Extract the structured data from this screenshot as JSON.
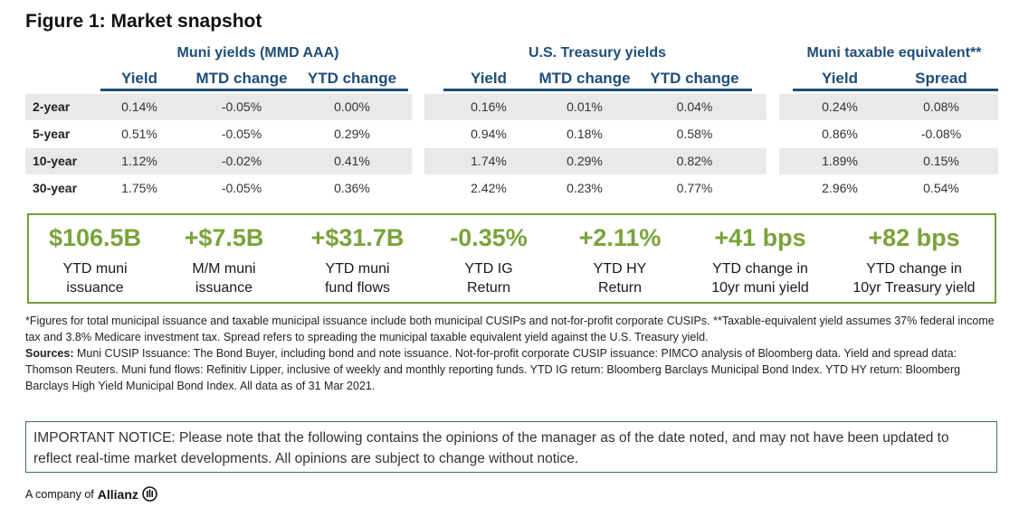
{
  "title": "Figure 1: Market snapshot",
  "groups": {
    "muni": {
      "title": "Muni yields (MMD AAA)",
      "cols": [
        "Yield",
        "MTD change",
        "YTD change"
      ]
    },
    "treasury": {
      "title": "U.S. Treasury yields",
      "cols": [
        "Yield",
        "MTD change",
        "YTD change"
      ]
    },
    "taxable": {
      "title": "Muni taxable equivalent**",
      "cols": [
        "Yield",
        "Spread"
      ]
    }
  },
  "rows": [
    {
      "label": "2-year",
      "muni": [
        "0.14%",
        "-0.05%",
        "0.00%"
      ],
      "treasury": [
        "0.16%",
        "0.01%",
        "0.04%"
      ],
      "taxable": [
        "0.24%",
        "0.08%"
      ]
    },
    {
      "label": "5-year",
      "muni": [
        "0.51%",
        "-0.05%",
        "0.29%"
      ],
      "treasury": [
        "0.94%",
        "0.18%",
        "0.58%"
      ],
      "taxable": [
        "0.86%",
        "-0.08%"
      ]
    },
    {
      "label": "10-year",
      "muni": [
        "1.12%",
        "-0.02%",
        "0.41%"
      ],
      "treasury": [
        "1.74%",
        "0.29%",
        "0.82%"
      ],
      "taxable": [
        "1.89%",
        "0.15%"
      ]
    },
    {
      "label": "30-year",
      "muni": [
        "1.75%",
        "-0.05%",
        "0.36%"
      ],
      "treasury": [
        "2.42%",
        "0.23%",
        "0.77%"
      ],
      "taxable": [
        "2.96%",
        "0.54%"
      ]
    }
  ],
  "kpis": [
    {
      "value": "$106.5B",
      "line1": "YTD muni",
      "line2": "issuance"
    },
    {
      "value": "+$7.5B",
      "line1": "M/M muni",
      "line2": "issuance"
    },
    {
      "value": "+$31.7B",
      "line1": "YTD muni",
      "line2": "fund flows"
    },
    {
      "value": "-0.35%",
      "line1": "YTD IG",
      "line2": "Return"
    },
    {
      "value": "+2.11%",
      "line1": "YTD HY",
      "line2": "Return"
    },
    {
      "value": "+41 bps",
      "line1": "YTD change in",
      "line2": "10yr muni yield"
    },
    {
      "value": "+82 bps",
      "line1": "YTD change in",
      "line2": "10yr Treasury yield"
    }
  ],
  "footnotes": {
    "note": "*Figures for total municipal issuance and taxable municipal issuance include both municipal CUSIPs and not-for-profit corporate CUSIPs. **Taxable-equivalent yield assumes 37% federal income tax and 3.8% Medicare investment tax. Spread refers to spreading the municipal taxable equivalent yield against the U.S. Treasury yield.",
    "sources_label": "Sources:",
    "sources": "Muni CUSIP Issuance: The Bond Buyer, including bond and note issuance. Not-for-profit corporate CUSIP issuance: PIMCO analysis of Bloomberg data. Yield and spread data: Thomson Reuters. Muni fund flows: Refinitiv Lipper, inclusive of weekly and monthly reporting funds. YTD IG return: Bloomberg Barclays Municipal Bond Index. YTD HY return: Bloomberg Barclays High Yield Municipal Bond Index. All data as of 31 Mar 2021."
  },
  "notice": "IMPORTANT NOTICE: Please note that the following contains the opinions of the manager as of the date noted, and may not have been updated to reflect real-time market developments. All opinions are subject to change without notice.",
  "footer": {
    "prefix": "A company of",
    "brand": "Allianz"
  },
  "colors": {
    "header_blue": "#1f4e79",
    "kpi_green": "#7aa33a",
    "kpi_border": "#7a9a3b",
    "row_shade": "#e9e9e9"
  },
  "icons": {
    "brand_mark": "allianz-logo-icon"
  }
}
